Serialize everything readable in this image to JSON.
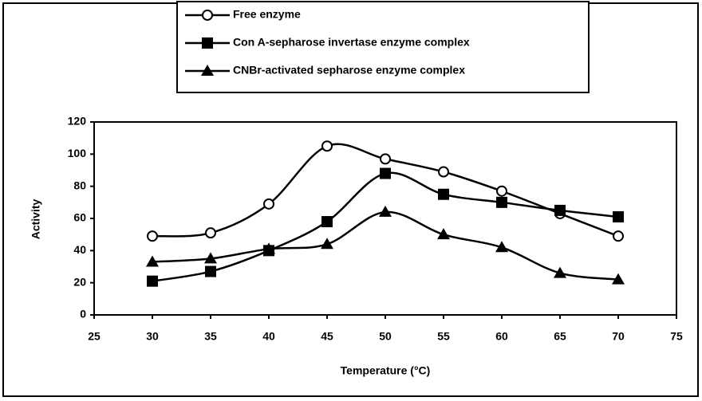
{
  "chart_data": {
    "type": "line",
    "x": [
      30,
      35,
      40,
      45,
      50,
      55,
      60,
      65,
      70
    ],
    "series": [
      {
        "name": "Free enzyme",
        "color": "#000000",
        "marker": "circle",
        "values": [
          49,
          51,
          69,
          105,
          97,
          89,
          77,
          63,
          49
        ]
      },
      {
        "name": "Con A-sepharose invertase enzyme complex",
        "color": "#000000",
        "marker": "square",
        "values": [
          21,
          27,
          40,
          58,
          88,
          75,
          70,
          65,
          61
        ]
      },
      {
        "name": "CNBr-activated sepharose enzyme complex",
        "color": "#000000",
        "marker": "triangle",
        "values": [
          33,
          35,
          41,
          44,
          64,
          50,
          42,
          26,
          22
        ]
      }
    ],
    "xlabel": "Temperature (°C)",
    "ylabel": "Activity",
    "xlim": [
      25,
      75
    ],
    "xticks": [
      25,
      30,
      35,
      40,
      45,
      50,
      55,
      60,
      65,
      70,
      75
    ],
    "ylim": [
      0,
      120
    ],
    "yticks": [
      0,
      20,
      40,
      60,
      80,
      100,
      120
    ],
    "legend": "top",
    "smooth": true
  }
}
